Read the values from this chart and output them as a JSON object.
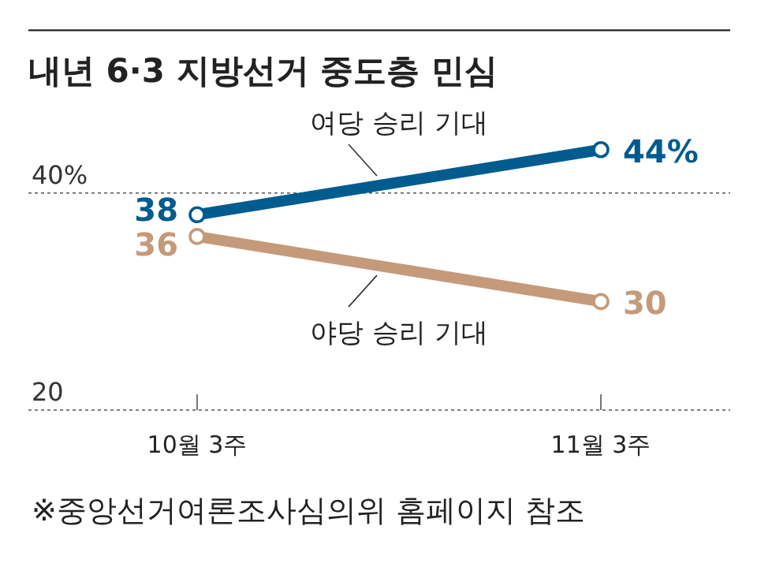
{
  "chart_data": {
    "type": "line",
    "title": "내년 6·3 지방선거 중도층 민심",
    "categories": [
      "10월 3주",
      "11월 3주"
    ],
    "series": [
      {
        "name": "여당 승리 기대",
        "color": "#005b8f",
        "values": [
          38,
          44
        ],
        "value_labels": [
          "38",
          "44%"
        ]
      },
      {
        "name": "야당 승리 기대",
        "color": "#c49a7a",
        "values": [
          36,
          30
        ],
        "value_labels": [
          "36",
          "30"
        ]
      }
    ],
    "ylim": [
      20,
      55
    ],
    "yticks": [
      {
        "value": 40,
        "label": "40%"
      },
      20
    ],
    "grid": "y",
    "marker": "circle",
    "annotations": [
      "※중앙선거여론조사심의위 홈페이지 참조"
    ]
  }
}
